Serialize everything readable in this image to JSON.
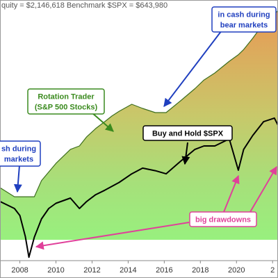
{
  "chart_data": {
    "type": "line",
    "title": "quity = $2,146,618  Benchmark $SPX = $643,980",
    "x": [
      2006.9,
      2007.7,
      2008.0,
      2008.3,
      2008.5,
      2008.8,
      2009.2,
      2009.6,
      2010.0,
      2010.8,
      2011.3,
      2011.7,
      2012.2,
      2012.7,
      2013.1,
      2013.5,
      2014.2,
      2014.8,
      2015.5,
      2016.1,
      2016.9,
      2017.7,
      2018.2,
      2018.8,
      2019.6,
      2020.1,
      2020.4,
      2020.9,
      2021.5,
      2022.1,
      2022.3
    ],
    "series": [
      {
        "name": "Rotation Trader",
        "color": "#3d6e1e",
        "fill": true,
        "values": [
          28,
          24.5,
          24.5,
          24.5,
          24.5,
          24.5,
          30.7,
          34,
          37.3,
          42.7,
          44,
          47.5,
          50.7,
          53.3,
          55.5,
          57.3,
          60,
          58.4,
          56.8,
          56.8,
          61.3,
          66,
          69.3,
          72,
          76.5,
          79,
          81,
          85.3,
          91,
          94.5,
          96
        ]
      },
      {
        "name": "Buy and Hold $SPX",
        "color": "#000000",
        "fill": false,
        "values": [
          22.7,
          20,
          17.3,
          9.3,
          1.3,
          9,
          16,
          20,
          22,
          24,
          20,
          22.7,
          25.3,
          27,
          28.5,
          30,
          33.3,
          35.5,
          34.5,
          33.3,
          38.1,
          42.7,
          44,
          44,
          46.7,
          34.7,
          42.7,
          48,
          53.3,
          54.7,
          52
        ]
      }
    ],
    "xlim": [
      2006.9,
      2022.3
    ],
    "xticks": [
      2008,
      2010,
      2012,
      2014,
      2016,
      2018,
      2020,
      {
        "value": 2022,
        "label": "2"
      }
    ],
    "ylim": [
      0,
      100
    ],
    "annotations": [
      {
        "lines": [
          "in cash during",
          "bear markets"
        ],
        "color": "#1f3fbf"
      },
      {
        "lines": [
          "sh during",
          "markets"
        ],
        "color": "#1f3fbf"
      },
      {
        "lines": [
          "Rotation Trader",
          "(S&P 500 Stocks)"
        ],
        "color": "#3a8a1e"
      },
      {
        "lines": [
          "Buy and Hold $SPX"
        ],
        "color": "#000000"
      },
      {
        "lines": [
          "big drawdowns"
        ],
        "color": "#e0409a"
      }
    ]
  }
}
